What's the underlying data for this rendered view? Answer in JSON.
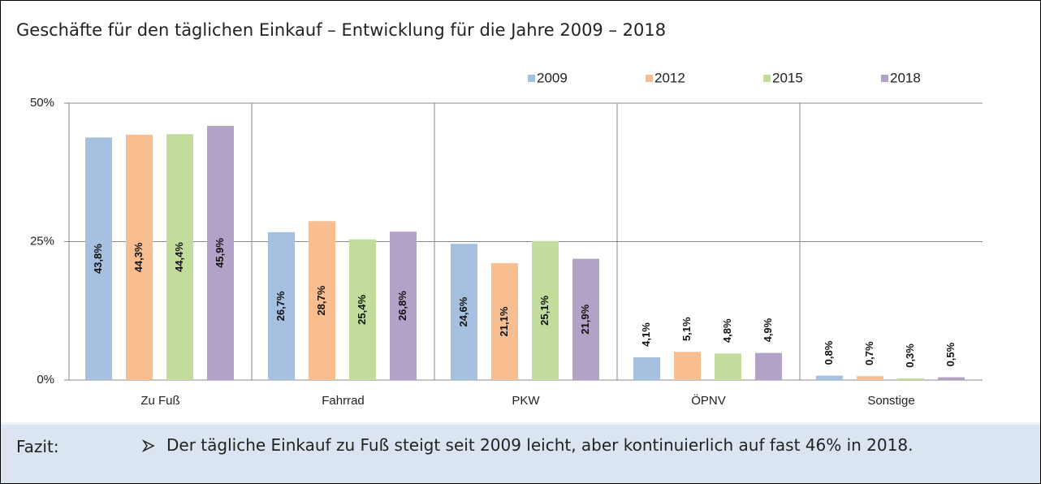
{
  "chart_data": {
    "type": "bar",
    "title": "Geschäfte für den täglichen Einkauf – Entwicklung für die Jahre 2009 – 2018",
    "categories": [
      "Zu Fuß",
      "Fahrrad",
      "PKW",
      "ÖPNV",
      "Sonstige"
    ],
    "series": [
      {
        "name": "2009",
        "color": "#a6c0df",
        "values": [
          43.8,
          26.7,
          24.6,
          4.1,
          0.8
        ],
        "value_labels": [
          "43,8%",
          "26,7%",
          "24,6%",
          "4,1%",
          "0,8%"
        ]
      },
      {
        "name": "2012",
        "color": "#f9be8f",
        "values": [
          44.3,
          28.7,
          21.1,
          5.1,
          0.7
        ],
        "value_labels": [
          "44,3%",
          "28,7%",
          "21,1%",
          "5,1%",
          "0,7%"
        ]
      },
      {
        "name": "2015",
        "color": "#c3dc9b",
        "values": [
          44.4,
          25.4,
          25.1,
          4.8,
          0.3
        ],
        "value_labels": [
          "44,4%",
          "25,4%",
          "25,1%",
          "4,8%",
          "0,3%"
        ]
      },
      {
        "name": "2018",
        "color": "#b3a2c7",
        "values": [
          45.9,
          26.8,
          21.9,
          4.9,
          0.5
        ],
        "value_labels": [
          "45,9%",
          "26,8%",
          "21,9%",
          "4,9%",
          "0,5%"
        ]
      }
    ],
    "ylim": [
      0,
      50
    ],
    "yticks": [
      {
        "value": 0,
        "label": "0%"
      },
      {
        "value": 25,
        "label": "25%"
      },
      {
        "value": 50,
        "label": "50%"
      }
    ],
    "grid": true
  },
  "fazit": {
    "label": "Fazit:",
    "text": "Der tägliche Einkauf zu Fuß steigt seit 2009 leicht, aber kontinuierlich auf fast 46% in 2018."
  }
}
